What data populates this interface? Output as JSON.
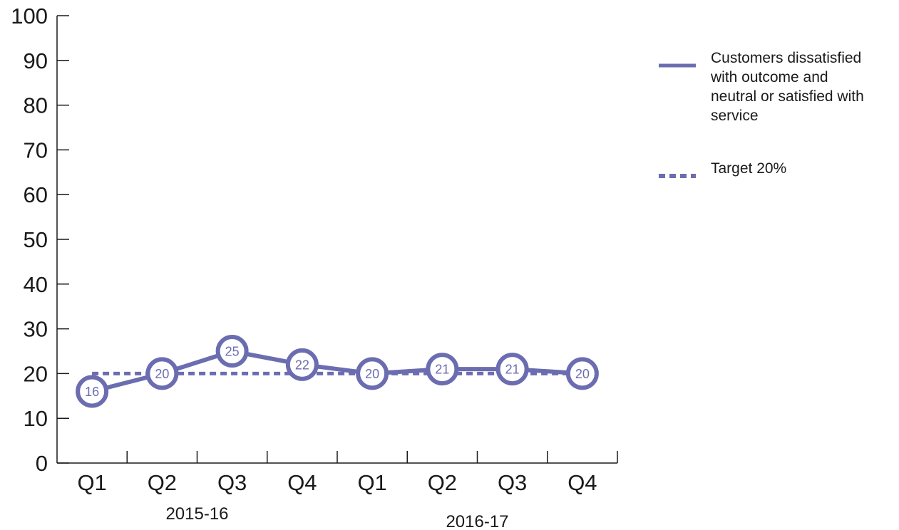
{
  "colors": {
    "series": "#6b6db0",
    "axis": "#1a1a1a",
    "marker_fill": "#ffffff"
  },
  "chart_data": {
    "type": "line",
    "title": "",
    "xlabel": "",
    "ylabel": "",
    "ylim": [
      0,
      100
    ],
    "y_ticks": [
      0,
      10,
      20,
      30,
      40,
      50,
      60,
      70,
      80,
      90,
      100
    ],
    "grid": false,
    "legend_position": "top-right",
    "categories": [
      "Q1",
      "Q2",
      "Q3",
      "Q4",
      "Q1",
      "Q2",
      "Q3",
      "Q4"
    ],
    "category_groups": [
      {
        "label": "2015-16",
        "start": 0,
        "end": 3
      },
      {
        "label": "2016-17",
        "start": 4,
        "end": 7
      }
    ],
    "series": [
      {
        "name": "Customers dissatisfied with outcome and neutral or satisfied with service",
        "legend_lines": [
          "Customers dissatisfied",
          "with outcome and",
          "neutral or satisfied with",
          "service"
        ],
        "style": "solid",
        "markers": true,
        "data_labels": true,
        "values": [
          16,
          20,
          25,
          22,
          20,
          21,
          21,
          20
        ]
      },
      {
        "name": "Target 20%",
        "legend_lines": [
          "Target 20%"
        ],
        "style": "dotted",
        "markers": false,
        "data_labels": false,
        "values": [
          20,
          20,
          20,
          20,
          20,
          20,
          20,
          20
        ]
      }
    ]
  }
}
